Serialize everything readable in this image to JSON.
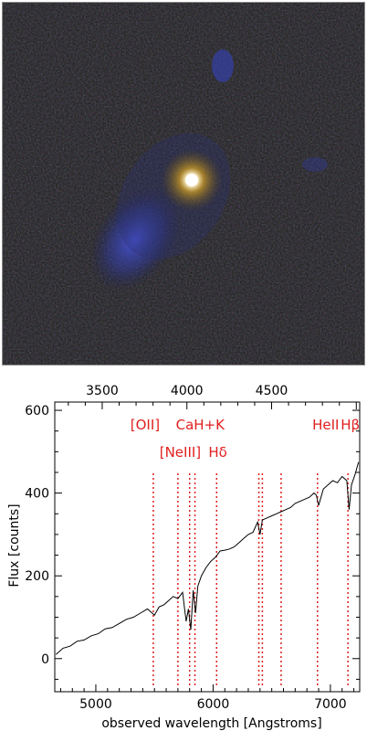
{
  "figure": {
    "image_alt": "false-color galaxy image",
    "colors": {
      "background": "#1a1a10",
      "core": "#ffffff",
      "core_glow": "#d4a020",
      "companion": "#3b48c8",
      "frame": "#888888",
      "spectrum": "#000000",
      "lines": "#e02020"
    }
  },
  "chart_data": {
    "type": "line",
    "xlabel": "observed wavelength [Angstroms]",
    "ylabel": "Flux [counts]",
    "x_range": [
      4650,
      7250
    ],
    "ylim": [
      -80,
      620
    ],
    "x_ticks": [
      5000,
      6000,
      7000
    ],
    "y_ticks": [
      0,
      200,
      400,
      600
    ],
    "top_axis": {
      "rest_range_approx": [
        3220,
        5020
      ],
      "ticks": [
        3500,
        4000,
        4500
      ]
    },
    "emission_lines": [
      {
        "label": "[OII]",
        "x": 5490
      },
      {
        "label": "[NeIII]",
        "x": 5700
      },
      {
        "label": "CaH+K",
        "x": 5800
      },
      {
        "label": "CaH+K",
        "x": 5845
      },
      {
        "label": "Hδ",
        "x": 6030
      },
      {
        "label": "",
        "x": 6390
      },
      {
        "label": "",
        "x": 6420
      },
      {
        "label": "",
        "x": 6580
      },
      {
        "label": "HeII",
        "x": 6890
      },
      {
        "label": "Hβ",
        "x": 7150
      }
    ],
    "line_labels": [
      {
        "text": "[OII]",
        "x": 5420,
        "row": 1
      },
      {
        "text": "CaH+K",
        "x": 5890,
        "row": 1
      },
      {
        "text": "HeII",
        "x": 6960,
        "row": 1
      },
      {
        "text": "Hβ",
        "x": 7170,
        "row": 1
      },
      {
        "text": "[NeIII]",
        "x": 5720,
        "row": 2
      },
      {
        "text": "Hδ",
        "x": 6040,
        "row": 2
      }
    ],
    "series": [
      {
        "x": [
          4660,
          4720,
          4780,
          4840,
          4900,
          4960,
          5020,
          5080,
          5140,
          5200,
          5260,
          5320,
          5380,
          5440,
          5500,
          5540,
          5580,
          5620,
          5660,
          5700,
          5740,
          5770,
          5790,
          5810,
          5830,
          5850,
          5870,
          5900,
          5940,
          5980,
          6020,
          6060,
          6100,
          6140,
          6180,
          6220,
          6260,
          6300,
          6340,
          6380,
          6400,
          6420,
          6460,
          6500,
          6540,
          6580,
          6620,
          6660,
          6700,
          6740,
          6780,
          6820,
          6860,
          6880,
          6900,
          6940,
          6980,
          7020,
          7060,
          7100,
          7140,
          7160,
          7180,
          7210,
          7240
        ],
        "y": [
          10,
          25,
          30,
          42,
          45,
          55,
          60,
          72,
          75,
          85,
          95,
          100,
          110,
          120,
          105,
          125,
          130,
          140,
          150,
          145,
          160,
          90,
          120,
          70,
          165,
          110,
          175,
          200,
          220,
          235,
          245,
          260,
          262,
          265,
          270,
          280,
          290,
          300,
          305,
          330,
          300,
          335,
          340,
          345,
          350,
          355,
          360,
          365,
          375,
          380,
          385,
          390,
          400,
          395,
          370,
          410,
          420,
          430,
          425,
          440,
          430,
          360,
          420,
          445,
          475
        ]
      }
    ]
  }
}
